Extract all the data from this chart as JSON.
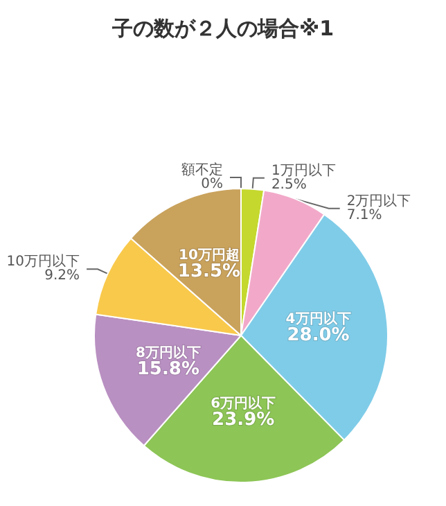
{
  "chart_data": {
    "type": "pie",
    "title": "子の数が２人の場合※1",
    "categories": [
      "額不定",
      "1万円以下",
      "2万円以下",
      "4万円以下",
      "6万円以下",
      "8万円以下",
      "10万円以下",
      "10万円超"
    ],
    "values": [
      0,
      2.5,
      7.1,
      28.0,
      23.9,
      15.8,
      9.2,
      13.5
    ],
    "value_labels": [
      "0%",
      "2.5%",
      "7.1%",
      "28.0%",
      "23.9%",
      "15.8%",
      "9.2%",
      "13.5%"
    ],
    "colors": [
      "#ffffff",
      "#c5d82e",
      "#f2a9c9",
      "#7fcce8",
      "#8dc556",
      "#b990c2",
      "#f9c94c",
      "#c9a25c"
    ]
  }
}
